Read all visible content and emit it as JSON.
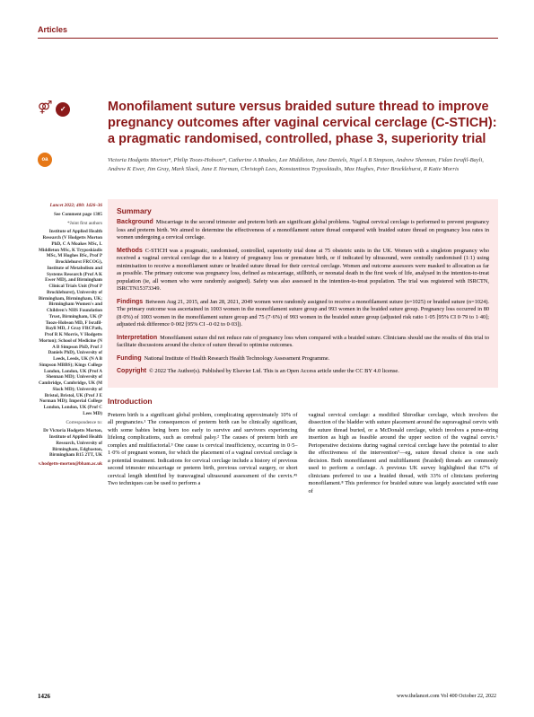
{
  "header": {
    "section_label": "Articles"
  },
  "title": "Monofilament suture versus braided suture thread to improve pregnancy outcomes after vaginal cervical cerclage (C-STICH): a pragmatic randomised, controlled, phase 3, superiority trial",
  "authors": "Victoria Hodgetts Morton*, Philip Toozs-Hobson*, Catherine A Moakes, Lee Middleton, Jane Daniels, Nigel A B Simpson, Andrew Shennan, Fidan Israfil-Bayli, Andrew K Ewer, Jim Gray, Mark Slack, Jane E Norman, Christoph Lees, Konstantinos Tryposkiadis, Max Hughes, Peter Brocklehurst, R Katie Morris",
  "sidebar": {
    "journal_ref": "Lancet 2022; 400: 1426–36",
    "see_comment": "See Comment page 1385",
    "joint_first": "*Joint first authors",
    "affiliations": "Institute of Applied Health Research (V Hodgetts Morton PhD, C A Moakes MSc, L Middleton MSc, K Tryposkiadis MSc, M Hughes BSc, Prof P Brocklehurst FRCOG), Institute of Metabolism and Systems Research (Prof A K Ewer MD), and Birmingham Clinical Trials Unit (Prof P Brocklehurst), University of Birmingham, Birmingham, UK; Birmingham Women's and Children's NHS Foundation Trust, Birmingham, UK (P Toozs-Hobson MD, F Israfil-Bayli MD, J Gray FRCPath, Prof R K Morris, V Hodgetts Morton); School of Medicine (N A B Simpson PhD, Prof J Daniels PhD), University of Leeds, Leeds, UK (N A B Simpson MBBS); Kings College London, London, UK (Prof A Shennan MD); University of Cambridge, Cambridge, UK (M Slack MD); University of Bristol, Bristol, UK (Prof J E Norman MD); Imperial College London, London, UK (Prof C Lees MD)",
    "correspondence_label": "Correspondence to:",
    "correspondence": "Dr Victoria Hodgetts Morton, Institute of Applied Health Research, University of Birmingham, Edgbaston, Birmingham B15 2TT, UK",
    "email": "v.hodgetts-morton@bham.ac.uk"
  },
  "summary": {
    "heading": "Summary",
    "background_label": "Background",
    "background": "Miscarriage in the second trimester and preterm birth are significant global problems. Vaginal cervical cerclage is performed to prevent pregnancy loss and preterm birth. We aimed to determine the effectiveness of a monofilament suture thread compared with braided suture thread on pregnancy loss rates in women undergoing a cervical cerclage.",
    "methods_label": "Methods",
    "methods": "C-STICH was a pragmatic, randomised, controlled, superiority trial done at 75 obstetric units in the UK. Women with a singleton pregnancy who received a vaginal cervical cerclage due to a history of pregnancy loss or premature birth, or if indicated by ultrasound, were centrally randomised (1:1) using minimisation to receive a monofilament suture or braided suture thread for their cervical cerclage. Women and outcome assessors were masked to allocation as far as possible. The primary outcome was pregnancy loss, defined as miscarriage, stillbirth, or neonatal death in the first week of life, analysed in the intention-to-treat population (ie, all women who were randomly assigned). Safety was also assessed in the intention-to-treat population. The trial was registered with ISRCTN, ISRCTN15373349.",
    "findings_label": "Findings",
    "findings": "Between Aug 21, 2015, and Jan 28, 2021, 2049 women were randomly assigned to receive a monofilament suture (n=1025) or braided suture (n=1024). The primary outcome was ascertained in 1003 women in the monofilament suture group and 993 women in the braided suture group. Pregnancy loss occurred in 80 (8·0%) of 1003 women in the monofilament suture group and 75 (7·6%) of 993 women in the braided suture group (adjusted risk ratio 1·05 [95% CI 0·79 to 1·40]; adjusted risk difference 0·002 [95% CI –0·02 to 0·03]).",
    "interpretation_label": "Interpretation",
    "interpretation": "Monofilament suture did not reduce rate of pregnancy loss when compared with a braided suture. Clinicians should use the results of this trial to facilitate discussions around the choice of suture thread to optimise outcomes.",
    "funding_label": "Funding",
    "funding": "National Institute of Health Research Health Technology Assessment Programme.",
    "copyright_label": "Copyright",
    "copyright": "© 2022 The Author(s). Published by Elsevier Ltd. This is an Open Access article under the CC BY 4.0 license."
  },
  "introduction": {
    "heading": "Introduction",
    "col1": "Preterm birth is a significant global problem, complicating approximately 10% of all pregnancies.¹ The consequences of preterm birth can be clinically significant, with some babies being born too early to survive and survivors experiencing lifelong complications, such as cerebral palsy.² The causes of preterm birth are complex and multifactorial.³ One cause is cervical insufficiency, occurring in 0·5–1·0% of pregnant women, for which the placement of a vaginal cervical cerclage is a potential treatment. Indications for cervical cerclage include a history of previous second trimester miscarriage or preterm birth, previous cervical surgery, or short cervical length identified by transvaginal ultrasound assessment of the cervix.⁴⁵ Two techniques can be used to perform a",
    "col2": "vaginal cervical cerclage: a modified Shirodkar cerclage, which involves the dissection of the bladder with suture placement around the supravaginal cervix with the suture thread buried, or a McDonald cerclage, which involves a purse-string insertion as high as feasible around the upper section of the vaginal cervix.⁶\n\nPerioperative decisions during vaginal cervical cerclage have the potential to alter the effectiveness of the intervention⁷—eg, suture thread choice is one such decision. Both monofilament and multifilament (braided) threads are commonly used to perform a cerclage. A previous UK survey highlighted that 67% of clinicians preferred to use a braided thread, with 33% of clinicians preferring monofilament.⁸ This preference for braided suture was largely associated with ease of"
  },
  "footer": {
    "page": "1426",
    "citation": "www.thelancet.com   Vol 400   October 22, 2022"
  },
  "colors": {
    "brand": "#8b1a1a",
    "oa_orange": "#e67817",
    "summary_bg": "#fce8e8",
    "text": "#000000",
    "background": "#ffffff"
  }
}
